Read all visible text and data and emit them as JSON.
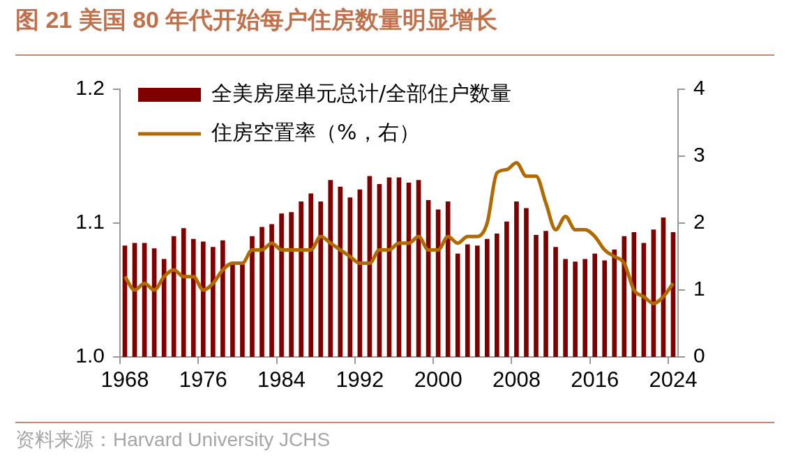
{
  "chart_data": {
    "type": "bar",
    "title": "图 21 美国 80 年代开始每户住房数量明显增长",
    "categories": [
      "1968",
      null,
      null,
      null,
      null,
      null,
      null,
      null,
      "1976",
      null,
      null,
      null,
      null,
      null,
      null,
      null,
      "1984",
      null,
      null,
      null,
      null,
      null,
      null,
      null,
      "1992",
      null,
      null,
      null,
      null,
      null,
      null,
      null,
      "2000",
      null,
      null,
      null,
      null,
      null,
      null,
      null,
      "2008",
      null,
      null,
      null,
      null,
      null,
      null,
      null,
      "2016",
      null,
      null,
      null,
      null,
      null,
      null,
      null,
      "2024"
    ],
    "series": [
      {
        "name": "全美房屋单元总计/全部住户数量",
        "color": "#800000",
        "values": [
          1.083,
          1.085,
          1.085,
          1.081,
          1.073,
          1.09,
          1.096,
          1.088,
          1.086,
          1.082,
          1.087,
          1.069,
          1.069,
          1.09,
          1.097,
          1.099,
          1.107,
          1.108,
          1.116,
          1.122,
          1.116,
          1.132,
          1.127,
          1.119,
          1.125,
          1.135,
          1.129,
          1.134,
          1.134,
          1.13,
          1.132,
          1.117,
          1.11,
          1.116,
          1.077,
          1.084,
          1.083,
          1.088,
          1.092,
          1.101,
          1.116,
          1.111,
          1.091,
          1.094,
          1.082,
          1.073,
          1.071,
          1.073,
          1.077,
          1.072,
          1.08,
          1.09,
          1.093,
          1.085,
          1.095,
          1.104,
          1.093
        ]
      },
      {
        "name": "住房空置率（%，右）",
        "type": "line",
        "axis": "y2",
        "color": "#b06a00",
        "values": [
          1.2,
          1.0,
          1.1,
          1.0,
          1.2,
          1.3,
          1.2,
          1.2,
          1.0,
          1.1,
          1.3,
          1.4,
          1.4,
          1.6,
          1.6,
          1.7,
          1.6,
          1.6,
          1.6,
          1.6,
          1.8,
          1.7,
          1.6,
          1.5,
          1.4,
          1.4,
          1.6,
          1.6,
          1.7,
          1.7,
          1.8,
          1.6,
          1.6,
          1.8,
          1.7,
          1.8,
          1.8,
          2.0,
          2.75,
          2.8,
          2.9,
          2.7,
          2.7,
          2.3,
          1.9,
          2.1,
          1.9,
          1.9,
          1.8,
          1.6,
          1.5,
          1.4,
          1.0,
          0.9,
          0.8,
          0.9,
          1.1
        ]
      }
    ],
    "ylim": [
      1.0,
      1.2
    ],
    "yticks": [
      {
        "value": 1.0,
        "label": "1.0"
      },
      {
        "value": 1.1,
        "label": "1.1"
      },
      {
        "value": 1.2,
        "label": "1.2"
      }
    ],
    "y2lim": [
      0,
      4
    ],
    "y2ticks": [
      0,
      1,
      2,
      3,
      4
    ],
    "legend": "top left",
    "grid": false,
    "marker": "none",
    "line_style": "solid",
    "annotations": [
      "资料来源：Harvard University JCHS"
    ]
  }
}
